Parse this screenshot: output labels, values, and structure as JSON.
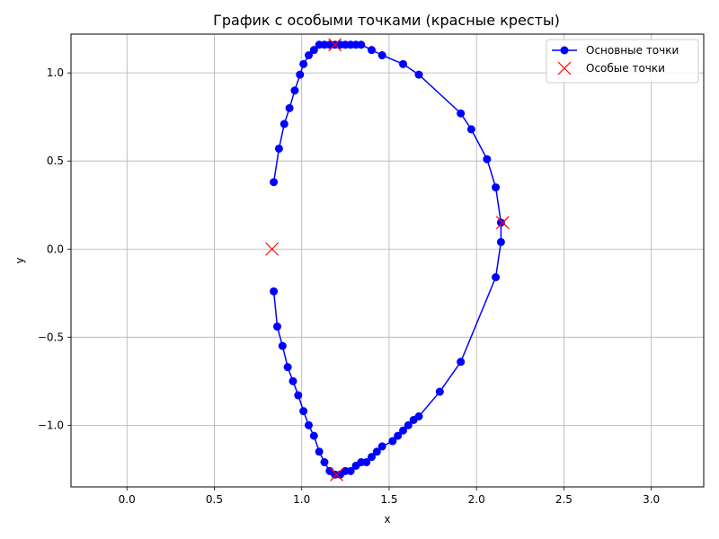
{
  "chart_data": {
    "type": "scatter",
    "title": "График с особыми точками (красные кресты)",
    "xlabel": "x",
    "ylabel": "y",
    "xlim": [
      -0.32,
      3.3
    ],
    "ylim": [
      -1.35,
      1.22
    ],
    "xticks": [
      0.0,
      0.5,
      1.0,
      1.5,
      2.0,
      2.5,
      3.0
    ],
    "yticks": [
      -1.0,
      -0.5,
      0.0,
      0.5,
      1.0
    ],
    "grid": true,
    "legend_position": "top-right",
    "series": [
      {
        "name": "Основные точки",
        "style": "line-with-markers",
        "color": "#0000ff",
        "points": [
          [
            0.84,
            -0.24
          ],
          [
            0.86,
            -0.44
          ],
          [
            0.89,
            -0.55
          ],
          [
            0.92,
            -0.67
          ],
          [
            0.95,
            -0.75
          ],
          [
            0.98,
            -0.83
          ],
          [
            1.01,
            -0.92
          ],
          [
            1.04,
            -1.0
          ],
          [
            1.07,
            -1.06
          ],
          [
            1.1,
            -1.15
          ],
          [
            1.13,
            -1.21
          ],
          [
            1.16,
            -1.26
          ],
          [
            1.19,
            -1.28
          ],
          [
            1.22,
            -1.28
          ],
          [
            1.25,
            -1.26
          ],
          [
            1.28,
            -1.26
          ],
          [
            1.31,
            -1.23
          ],
          [
            1.34,
            -1.21
          ],
          [
            1.37,
            -1.21
          ],
          [
            1.4,
            -1.18
          ],
          [
            1.43,
            -1.15
          ],
          [
            1.46,
            -1.12
          ],
          [
            1.52,
            -1.09
          ],
          [
            1.55,
            -1.06
          ],
          [
            1.58,
            -1.03
          ],
          [
            1.61,
            -1.0
          ],
          [
            1.64,
            -0.97
          ],
          [
            1.67,
            -0.95
          ],
          [
            1.79,
            -0.81
          ],
          [
            1.91,
            -0.64
          ],
          [
            2.11,
            -0.16
          ],
          [
            2.14,
            0.04
          ],
          [
            2.14,
            0.15
          ],
          [
            2.11,
            0.35
          ],
          [
            2.06,
            0.51
          ],
          [
            1.97,
            0.68
          ],
          [
            1.91,
            0.77
          ],
          [
            1.67,
            0.99
          ],
          [
            1.58,
            1.05
          ],
          [
            1.46,
            1.1
          ],
          [
            1.4,
            1.13
          ],
          [
            1.34,
            1.16
          ],
          [
            1.31,
            1.16
          ],
          [
            1.28,
            1.16
          ],
          [
            1.25,
            1.16
          ],
          [
            1.22,
            1.16
          ],
          [
            1.19,
            1.16
          ],
          [
            1.16,
            1.16
          ],
          [
            1.13,
            1.16
          ],
          [
            1.1,
            1.16
          ],
          [
            1.07,
            1.13
          ],
          [
            1.04,
            1.1
          ],
          [
            1.01,
            1.05
          ],
          [
            0.99,
            0.99
          ],
          [
            0.96,
            0.9
          ],
          [
            0.93,
            0.8
          ],
          [
            0.9,
            0.71
          ],
          [
            0.87,
            0.57
          ],
          [
            0.84,
            0.38
          ]
        ]
      },
      {
        "name": "Особые точки",
        "style": "markers-x",
        "color": "#ff0000",
        "points": [
          [
            0.83,
            0.0
          ],
          [
            1.19,
            1.16
          ],
          [
            1.2,
            -1.28
          ],
          [
            2.15,
            0.15
          ]
        ]
      }
    ]
  }
}
